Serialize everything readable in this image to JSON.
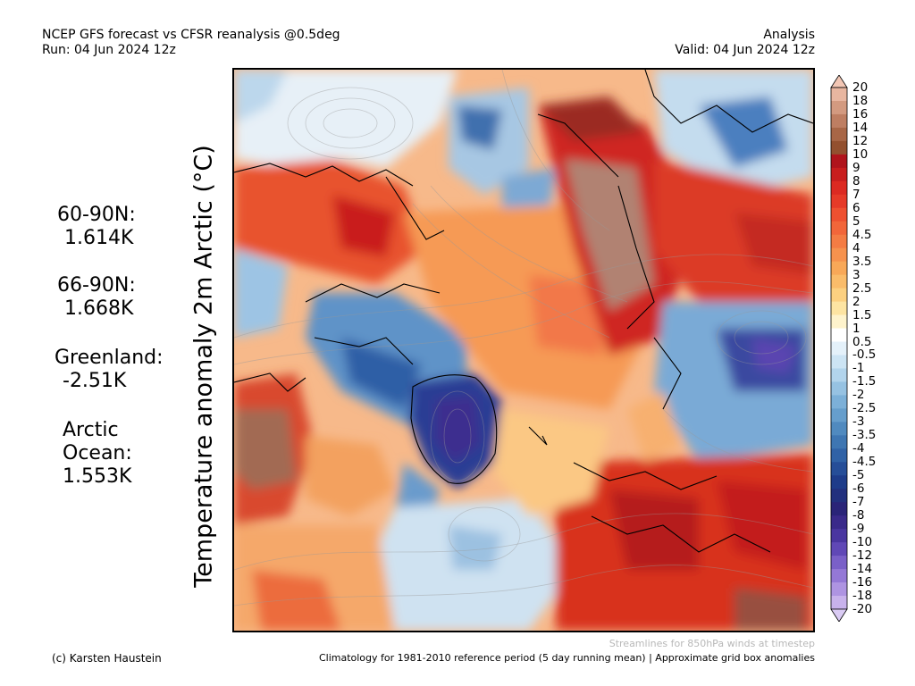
{
  "header": {
    "line1_left": "NCEP GFS forecast vs CFSR reanalysis @0.5deg",
    "line2_left": "Run: 04 Jun 2024 12z",
    "line1_right": "Analysis",
    "line2_right": "Valid: 04 Jun 2024 12z"
  },
  "ylabel": "Temperature anomaly 2m Arctic (°C)",
  "stats": [
    {
      "label": "60-90N:",
      "value": "1.614K"
    },
    {
      "label": "66-90N:",
      "value": "1.668K"
    },
    {
      "label": "Greenland:",
      "value": "-2.51K"
    },
    {
      "label": "Arctic",
      "label2": "Ocean:",
      "value": "1.553K"
    }
  ],
  "colorbar": {
    "labels": [
      "20",
      "18",
      "16",
      "14",
      "12",
      "10",
      "9",
      "8",
      "7",
      "6",
      "5",
      "4.5",
      "4",
      "3.5",
      "3",
      "2.5",
      "2",
      "1.5",
      "1",
      "0.5",
      "-0.5",
      "-1",
      "-1.5",
      "-2",
      "-2.5",
      "-3",
      "-3.5",
      "-4",
      "-4.5",
      "-5",
      "-6",
      "-7",
      "-8",
      "-9",
      "-10",
      "-12",
      "-14",
      "-16",
      "-18",
      "-20"
    ],
    "colors": [
      "#e8b6a0",
      "#d39a80",
      "#be7e62",
      "#a86646",
      "#93502f",
      "#b0141c",
      "#c81e1e",
      "#dc2a22",
      "#e63a28",
      "#ee5030",
      "#f2663a",
      "#f47c44",
      "#f6924e",
      "#f8a858",
      "#fabc6a",
      "#fcd080",
      "#fde4a2",
      "#fef3cc",
      "#ffffff",
      "#e4f1fa",
      "#cce4f4",
      "#b2d4ec",
      "#96c2e2",
      "#7cb0d8",
      "#669ecc",
      "#508abf",
      "#3e76b2",
      "#3062a6",
      "#264e98",
      "#1e3c8a",
      "#22307e",
      "#2a2478",
      "#3a2a8a",
      "#4a36a0",
      "#6048b6",
      "#7a60c8",
      "#9478d6",
      "#ae94e2",
      "#c8b2ec"
    ],
    "top_arrow_color": "#f2c6b4",
    "bottom_arrow_color": "#dacbf4"
  },
  "footer": {
    "note1": "Streamlines for 850hPa winds at timestep",
    "credit": "(c) Karsten Haustein",
    "note2": "Climatology for 1981-2010 reference period (5 day running mean) | Approximate grid box anomalies"
  }
}
